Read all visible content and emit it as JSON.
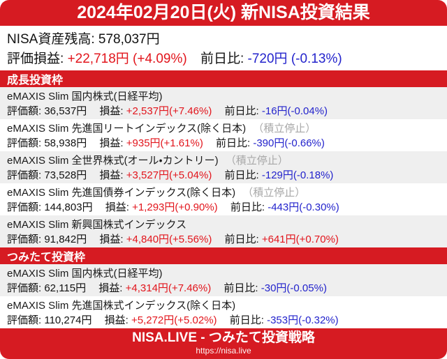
{
  "header": {
    "title": "2024年02月20日(火) 新NISA投資結果"
  },
  "summary": {
    "balance_label": "NISA資産残高:",
    "balance_value": "578,037円",
    "pl_label": "評価損益:",
    "pl_value": "+22,718円 (+4.09%)",
    "dod_label": "前日比:",
    "dod_value": "-720円 (-0.13%)"
  },
  "labels": {
    "valuation": "評価額:",
    "pl": "損益:",
    "dod": "前日比:"
  },
  "sections": [
    {
      "title": "成長投資枠",
      "funds": [
        {
          "name": "eMAXIS Slim 国内株式(日経平均)",
          "suspended": "",
          "valuation": "36,537円",
          "pl": "+2,537円(+7.46%)",
          "pl_class": "pos",
          "dod": "-16円(-0.04%)",
          "dod_class": "neg"
        },
        {
          "name": "eMAXIS Slim 先進国リートインデックス(除く日本)",
          "suspended": "（積立停止）",
          "valuation": "58,938円",
          "pl": "+935円(+1.61%)",
          "pl_class": "pos",
          "dod": "-390円(-0.66%)",
          "dod_class": "neg"
        },
        {
          "name": "eMAXIS Slim 全世界株式(オール・カントリー)",
          "suspended": "（積立停止）",
          "valuation": "73,528円",
          "pl": "+3,527円(+5.04%)",
          "pl_class": "pos",
          "dod": "-129円(-0.18%)",
          "dod_class": "neg"
        },
        {
          "name": "eMAXIS Slim 先進国債券インデックス(除く日本)",
          "suspended": "（積立停止）",
          "valuation": "144,803円",
          "pl": "+1,293円(+0.90%)",
          "pl_class": "pos",
          "dod": "-443円(-0.30%)",
          "dod_class": "neg"
        },
        {
          "name": "eMAXIS Slim 新興国株式インデックス",
          "suspended": "",
          "valuation": "91,842円",
          "pl": "+4,840円(+5.56%)",
          "pl_class": "pos",
          "dod": "+641円(+0.70%)",
          "dod_class": "pos"
        }
      ]
    },
    {
      "title": "つみたて投資枠",
      "funds": [
        {
          "name": "eMAXIS Slim 国内株式(日経平均)",
          "suspended": "",
          "valuation": "62,115円",
          "pl": "+4,314円(+7.46%)",
          "pl_class": "pos",
          "dod": "-30円(-0.05%)",
          "dod_class": "neg"
        },
        {
          "name": "eMAXIS Slim 先進国株式インデックス(除く日本)",
          "suspended": "",
          "valuation": "110,274円",
          "pl": "+5,272円(+5.02%)",
          "pl_class": "pos",
          "dod": "-353円(-0.32%)",
          "dod_class": "neg"
        }
      ]
    }
  ],
  "footer": {
    "title": "NISA.LIVE - つみたて投資戦略",
    "url": "https://nisa.live"
  },
  "colors": {
    "brand-red": "#D61B22",
    "gain-red": "#E2151C",
    "loss-blue": "#2323CC",
    "row-alt-gray": "#EFEFEF",
    "suspended-gray": "#A8A8A8"
  }
}
